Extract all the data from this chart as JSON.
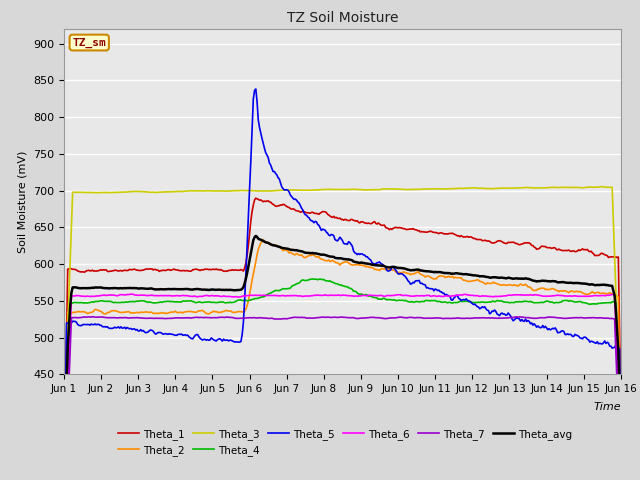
{
  "title": "TZ Soil Moisture",
  "xlabel": "Time",
  "ylabel": "Soil Moisture (mV)",
  "ylim": [
    450,
    920
  ],
  "yticks": [
    450,
    500,
    550,
    600,
    650,
    700,
    750,
    800,
    850,
    900
  ],
  "xtick_labels": [
    "Jun 1",
    "Jun 2",
    "Jun 3",
    "Jun 4",
    "Jun 5",
    "Jun 6",
    "Jun 7",
    "Jun 8",
    "Jun 9",
    "Jun 10",
    "Jun 11",
    "Jun 12",
    "Jun 13",
    "Jun 14",
    "Jun 15",
    "Jun 16"
  ],
  "fig_bg": "#d8d8d8",
  "plot_bg": "#e8e8e8",
  "grid_color": "#ffffff",
  "legend_label": "TZ_sm",
  "series": {
    "Theta_1": {
      "color": "#cc0000",
      "lw": 1.2
    },
    "Theta_2": {
      "color": "#ff8c00",
      "lw": 1.2
    },
    "Theta_3": {
      "color": "#cccc00",
      "lw": 1.2
    },
    "Theta_4": {
      "color": "#00bb00",
      "lw": 1.2
    },
    "Theta_5": {
      "color": "#0000ee",
      "lw": 1.2
    },
    "Theta_6": {
      "color": "#ff00ff",
      "lw": 1.2
    },
    "Theta_7": {
      "color": "#9900cc",
      "lw": 1.2
    },
    "Theta_avg": {
      "color": "#000000",
      "lw": 1.8
    }
  }
}
